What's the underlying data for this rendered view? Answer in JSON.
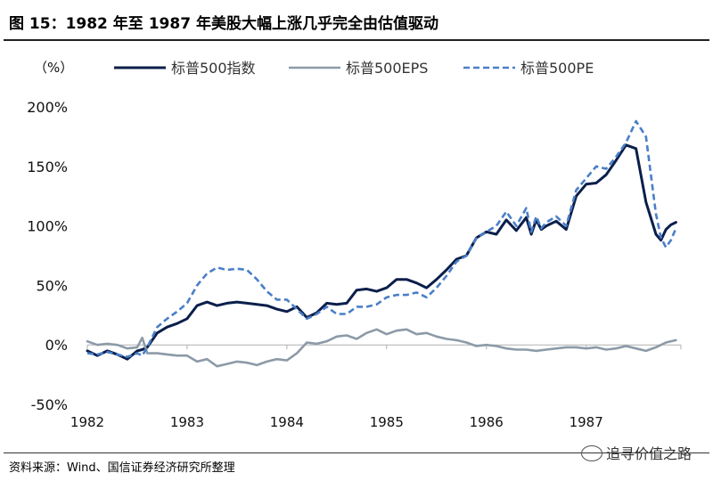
{
  "header": {
    "title": "图 15：1982 年至 1987 年美股大幅上涨几乎完全由估值驱动"
  },
  "footer": {
    "source": "资料来源：Wind、国信证券经济研究所整理"
  },
  "watermark": {
    "text": "追寻价值之路",
    "icon": "wechat-icon"
  },
  "chart_data": {
    "type": "line",
    "title": "1982 年至 1987 年美股大幅上涨几乎完全由估值驱动",
    "ylabel": "（%）",
    "xlabel": "",
    "ylim": [
      -50,
      200
    ],
    "xlim": [
      1982,
      1987.95
    ],
    "yticks": [
      -50,
      0,
      50,
      100,
      150,
      200
    ],
    "ytick_labels": [
      "-50%",
      "0%",
      "50%",
      "100%",
      "150%",
      "200%"
    ],
    "xticks": [
      1982,
      1983,
      1984,
      1985,
      1986,
      1987
    ],
    "xtick_labels": [
      "1982",
      "1983",
      "1984",
      "1985",
      "1986",
      "1987"
    ],
    "legend_position": "top",
    "grid": false,
    "series": [
      {
        "name": "标普500指数",
        "color": "#0b1f4b",
        "style": "solid",
        "x": [
          1982.0,
          1982.1,
          1982.2,
          1982.3,
          1982.4,
          1982.5,
          1982.55,
          1982.6,
          1982.7,
          1982.8,
          1982.9,
          1983.0,
          1983.1,
          1983.2,
          1983.3,
          1983.4,
          1983.5,
          1983.6,
          1983.7,
          1983.8,
          1983.9,
          1984.0,
          1984.1,
          1984.2,
          1984.3,
          1984.4,
          1984.5,
          1984.6,
          1984.7,
          1984.8,
          1984.9,
          1985.0,
          1985.1,
          1985.2,
          1985.3,
          1985.4,
          1985.5,
          1985.6,
          1985.7,
          1985.8,
          1985.9,
          1986.0,
          1986.1,
          1986.2,
          1986.3,
          1986.4,
          1986.45,
          1986.5,
          1986.55,
          1986.6,
          1986.7,
          1986.8,
          1986.9,
          1987.0,
          1987.1,
          1987.2,
          1987.3,
          1987.4,
          1987.5,
          1987.6,
          1987.7,
          1987.75,
          1987.8,
          1987.85,
          1987.9
        ],
        "values": [
          -5,
          -9,
          -5,
          -8,
          -12,
          -5,
          -4,
          -2,
          10,
          15,
          18,
          22,
          33,
          36,
          33,
          35,
          36,
          35,
          34,
          33,
          30,
          28,
          32,
          23,
          27,
          35,
          34,
          35,
          46,
          47,
          45,
          48,
          55,
          55,
          52,
          48,
          55,
          63,
          72,
          75,
          90,
          95,
          93,
          105,
          96,
          107,
          93,
          105,
          97,
          100,
          104,
          97,
          125,
          135,
          136,
          143,
          155,
          168,
          165,
          120,
          93,
          88,
          97,
          101,
          103
        ]
      },
      {
        "name": "标普500EPS",
        "color": "#8c9aa8",
        "style": "solid",
        "x": [
          1982.0,
          1982.1,
          1982.2,
          1982.3,
          1982.4,
          1982.5,
          1982.55,
          1982.6,
          1982.7,
          1982.8,
          1982.9,
          1983.0,
          1983.1,
          1983.2,
          1983.3,
          1983.4,
          1983.5,
          1983.6,
          1983.7,
          1983.8,
          1983.9,
          1984.0,
          1984.1,
          1984.2,
          1984.3,
          1984.4,
          1984.5,
          1984.6,
          1984.7,
          1984.8,
          1984.9,
          1985.0,
          1985.1,
          1985.2,
          1985.3,
          1985.4,
          1985.5,
          1985.6,
          1985.7,
          1985.8,
          1985.9,
          1986.0,
          1986.1,
          1986.2,
          1986.3,
          1986.4,
          1986.5,
          1986.6,
          1986.7,
          1986.8,
          1986.9,
          1987.0,
          1987.1,
          1987.2,
          1987.3,
          1987.4,
          1987.5,
          1987.6,
          1987.7,
          1987.8,
          1987.9
        ],
        "values": [
          3,
          0,
          1,
          0,
          -3,
          -2,
          6,
          -7,
          -7,
          -8,
          -9,
          -9,
          -14,
          -12,
          -18,
          -16,
          -14,
          -15,
          -17,
          -14,
          -12,
          -13,
          -7,
          2,
          1,
          3,
          7,
          8,
          5,
          10,
          13,
          9,
          12,
          13,
          9,
          10,
          7,
          5,
          4,
          2,
          -1,
          0,
          -1,
          -3,
          -4,
          -4,
          -5,
          -4,
          -3,
          -2,
          -2,
          -3,
          -2,
          -4,
          -3,
          -1,
          -3,
          -5,
          -2,
          2,
          4
        ]
      },
      {
        "name": "标普500PE",
        "color": "#4a7fc8",
        "style": "dashed",
        "x": [
          1982.0,
          1982.1,
          1982.2,
          1982.3,
          1982.4,
          1982.5,
          1982.55,
          1982.6,
          1982.7,
          1982.8,
          1982.9,
          1983.0,
          1983.1,
          1983.2,
          1983.3,
          1983.4,
          1983.5,
          1983.6,
          1983.7,
          1983.8,
          1983.9,
          1984.0,
          1984.1,
          1984.2,
          1984.3,
          1984.4,
          1984.5,
          1984.6,
          1984.7,
          1984.8,
          1984.9,
          1985.0,
          1985.1,
          1985.2,
          1985.3,
          1985.4,
          1985.5,
          1985.6,
          1985.7,
          1985.8,
          1985.9,
          1986.0,
          1986.1,
          1986.2,
          1986.3,
          1986.4,
          1986.45,
          1986.5,
          1986.55,
          1986.6,
          1986.7,
          1986.8,
          1986.9,
          1987.0,
          1987.1,
          1987.2,
          1987.3,
          1987.4,
          1987.5,
          1987.6,
          1987.7,
          1987.75,
          1987.8,
          1987.85,
          1987.9
        ],
        "values": [
          -7,
          -8,
          -6,
          -8,
          -10,
          -7,
          -9,
          -2,
          15,
          22,
          28,
          35,
          50,
          60,
          65,
          63,
          64,
          63,
          55,
          45,
          38,
          38,
          30,
          22,
          26,
          32,
          26,
          26,
          32,
          32,
          34,
          40,
          42,
          42,
          44,
          40,
          48,
          58,
          70,
          75,
          90,
          95,
          100,
          112,
          100,
          115,
          95,
          108,
          98,
          103,
          108,
          100,
          130,
          140,
          150,
          148,
          158,
          170,
          188,
          175,
          110,
          90,
          82,
          88,
          98
        ]
      }
    ]
  }
}
